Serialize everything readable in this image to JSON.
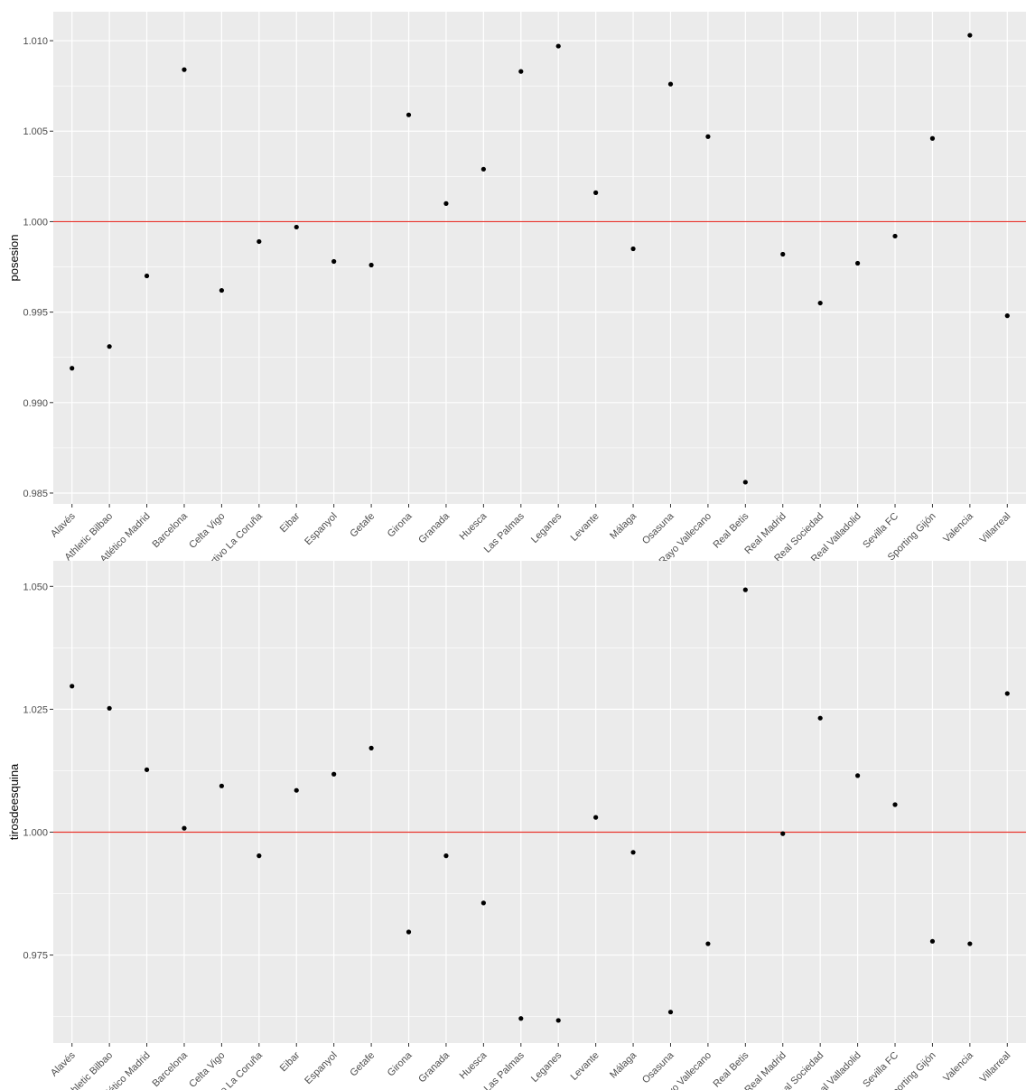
{
  "chart_data": [
    {
      "type": "scatter",
      "xlabel": "",
      "ylabel": "posesion",
      "categories": [
        "Alavés",
        "Athletic Bilbao",
        "Atlético Madrid",
        "Barcelona",
        "Celta Vigo",
        "Deportivo La Coruña",
        "Eibar",
        "Espanyol",
        "Getafe",
        "Girona",
        "Granada",
        "Huesca",
        "Las Palmas",
        "Leganes",
        "Levante",
        "Málaga",
        "Osasuna",
        "Rayo Vallecano",
        "Real Betis",
        "Real Madrid",
        "Real Sociedad",
        "Real Valladolid",
        "Sevilla FC",
        "Sporting Gijón",
        "Valencia",
        "Villarreal"
      ],
      "values": [
        0.9919,
        0.9931,
        0.997,
        1.0084,
        0.9962,
        0.9989,
        0.9997,
        0.9978,
        0.9976,
        1.0059,
        1.001,
        1.0029,
        1.0083,
        1.0097,
        1.0016,
        0.9985,
        1.0076,
        1.0047,
        0.9856,
        0.9982,
        0.9955,
        0.9977,
        0.9992,
        1.0046,
        1.0103,
        0.9948
      ],
      "yticks": [
        "0.985",
        "0.990",
        "0.995",
        "1.000",
        "1.005",
        "1.010"
      ],
      "ylim": [
        0.9844,
        1.0116
      ],
      "reference_line": 1.0,
      "grid": true,
      "colors": {
        "points": "#000000",
        "reference_line": "#e8322b",
        "panel": "#ebebeb",
        "grid": "#ffffff"
      }
    },
    {
      "type": "scatter",
      "xlabel": "",
      "ylabel": "tirosdeesquina",
      "categories": [
        "Alavés",
        "Athletic Bilbao",
        "Atlético Madrid",
        "Barcelona",
        "Celta Vigo",
        "Deportivo La Coruña",
        "Eibar",
        "Espanyol",
        "Getafe",
        "Girona",
        "Granada",
        "Huesca",
        "Las Palmas",
        "Leganes",
        "Levante",
        "Málaga",
        "Osasuna",
        "Rayo Vallecano",
        "Real Betis",
        "Real Madrid",
        "Real Sociedad",
        "Real Valladolid",
        "Sevilla FC",
        "Sporting Gijón",
        "Valencia",
        "Villarreal"
      ],
      "values": [
        1.0297,
        1.0252,
        1.0127,
        1.0008,
        1.0094,
        0.9952,
        1.0085,
        1.0118,
        1.0171,
        0.9797,
        0.9952,
        0.9856,
        0.9621,
        0.9617,
        1.003,
        0.9959,
        0.9634,
        0.9773,
        1.0493,
        0.9997,
        1.0232,
        1.0115,
        1.0056,
        0.9778,
        0.9773,
        1.0282
      ],
      "yticks": [
        "0.975",
        "1.000",
        "1.025",
        "1.050"
      ],
      "ylim": [
        0.9571,
        1.0552
      ],
      "reference_line": 1.0,
      "grid": true,
      "colors": {
        "points": "#000000",
        "reference_line": "#e8322b",
        "panel": "#ebebeb",
        "grid": "#ffffff"
      }
    }
  ]
}
